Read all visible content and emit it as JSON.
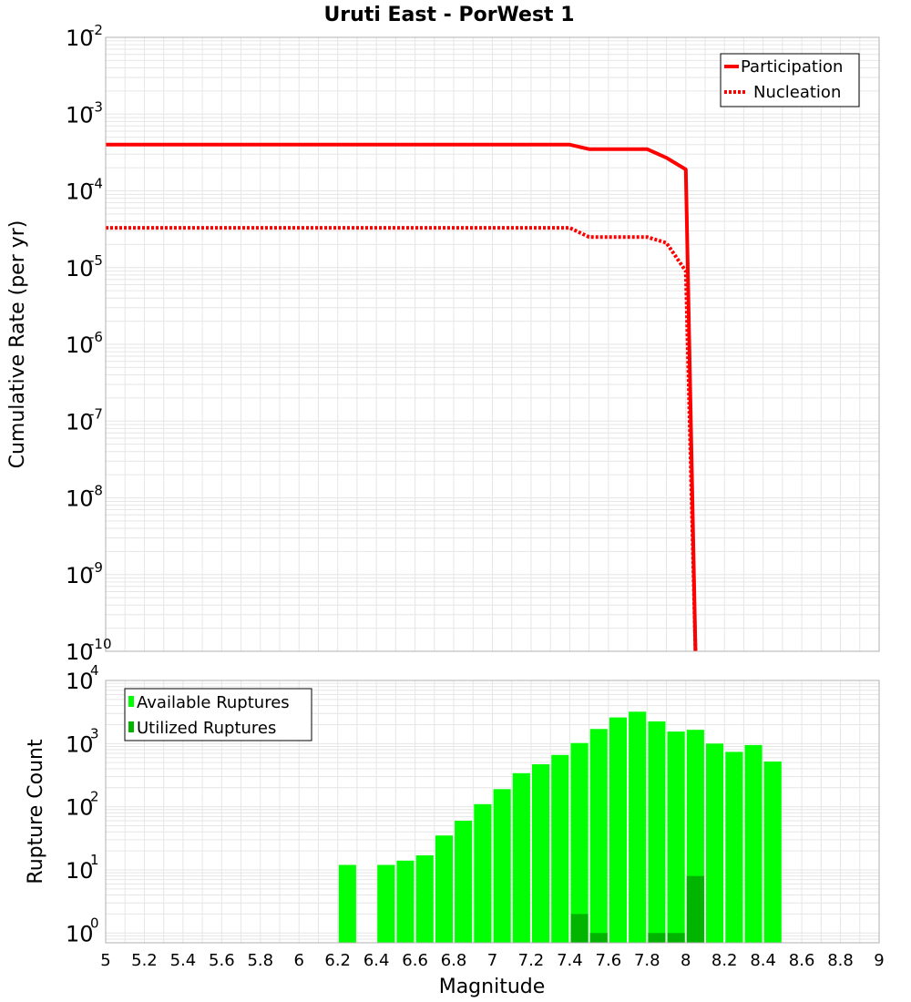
{
  "title": "Uruti East - PorWest 1",
  "colors": {
    "participation": "#ff0000",
    "nucleation": "#ff0000",
    "available": "#00ff00",
    "utilized": "#00b400",
    "grid": "#e6e6e6",
    "frame": "#b0b0b0"
  },
  "chart_data": [
    {
      "type": "line",
      "ylabel": "Cumulative Rate (per yr)",
      "xlim": [
        5,
        9
      ],
      "ylim": [
        1e-10,
        0.01
      ],
      "yscale": "log",
      "grid": true,
      "legend_position": "top-right",
      "y_tick_base": "10",
      "y_tick_exponents": [
        "-10",
        "-9",
        "-8",
        "-7",
        "-6",
        "-5",
        "-4",
        "-3",
        "-2"
      ],
      "series": [
        {
          "name": "Participation",
          "style": "solid",
          "x": [
            5.0,
            7.4,
            7.5,
            7.6,
            7.7,
            7.8,
            7.9,
            8.0,
            8.05
          ],
          "y": [
            0.0004,
            0.0004,
            0.00035,
            0.00035,
            0.00035,
            0.00035,
            0.00027,
            0.00019,
            1e-10
          ]
        },
        {
          "name": "Nucleation",
          "style": "dotted",
          "x": [
            5.0,
            7.4,
            7.5,
            7.6,
            7.7,
            7.8,
            7.9,
            8.0,
            8.05
          ],
          "y": [
            3.3e-05,
            3.3e-05,
            2.5e-05,
            2.5e-05,
            2.5e-05,
            2.5e-05,
            2.1e-05,
            9e-06,
            1e-10
          ]
        }
      ]
    },
    {
      "type": "bar",
      "xlabel": "Magnitude",
      "ylabel": "Rupture Count",
      "xlim": [
        5,
        9
      ],
      "ylim": [
        0.7,
        10000.0
      ],
      "yscale": "log",
      "grid": true,
      "legend_position": "top-left",
      "y_tick_base": "10",
      "y_tick_exponents": [
        "0",
        "1",
        "2",
        "3",
        "4"
      ],
      "x_ticks": [
        "5",
        "5.2",
        "5.4",
        "5.6",
        "5.8",
        "6",
        "6.2",
        "6.4",
        "6.6",
        "6.8",
        "7",
        "7.2",
        "7.4",
        "7.6",
        "7.8",
        "8",
        "8.2",
        "8.4",
        "8.6",
        "8.8",
        "9"
      ],
      "bar_width": 0.09,
      "series": [
        {
          "name": "Available Ruptures",
          "x": [
            6.25,
            6.45,
            6.55,
            6.65,
            6.75,
            6.85,
            6.95,
            7.05,
            7.15,
            7.25,
            7.35,
            7.45,
            7.55,
            7.65,
            7.75,
            7.85,
            7.95,
            8.05,
            8.15,
            8.25,
            8.35,
            8.45
          ],
          "values": [
            12,
            12,
            14,
            17,
            35,
            60,
            110,
            190,
            340,
            470,
            660,
            1020,
            1700,
            2600,
            3200,
            2250,
            1550,
            1650,
            1000,
            740,
            950,
            520
          ]
        },
        {
          "name": "Utilized Ruptures",
          "x": [
            7.45,
            7.55,
            7.85,
            7.95,
            8.05
          ],
          "values": [
            2,
            1,
            1,
            1,
            8
          ]
        }
      ]
    }
  ]
}
